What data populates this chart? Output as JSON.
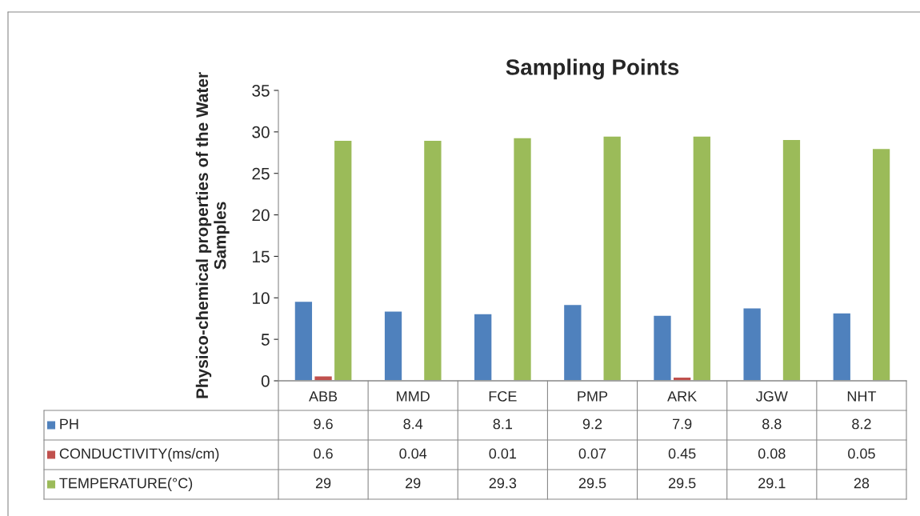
{
  "chart_data": {
    "type": "bar",
    "title": "Sampling Points",
    "ylabel": "Physico-chemical properties of the Water\nSamples",
    "categories": [
      "ABB",
      "MMD",
      "FCE",
      "PMP",
      "ARK",
      "JGW",
      "NHT"
    ],
    "series": [
      {
        "name": "PH",
        "color": "#4f81bd",
        "values": [
          9.6,
          8.4,
          8.1,
          9.2,
          7.9,
          8.8,
          8.2
        ]
      },
      {
        "name": "CONDUCTIVITY(ms/cm)",
        "color": "#c0504d",
        "values": [
          0.6,
          0.04,
          0.01,
          0.07,
          0.45,
          0.08,
          0.05
        ]
      },
      {
        "name": "TEMPERATURE(°C)",
        "color": "#9bbb59",
        "values": [
          29,
          29,
          29.3,
          29.5,
          29.5,
          29.1,
          28
        ]
      }
    ],
    "ylim": [
      0,
      35
    ],
    "yticks": [
      0,
      5,
      10,
      15,
      20,
      25,
      30,
      35
    ],
    "grid": false,
    "legend": "bottom",
    "data_labels": true
  }
}
